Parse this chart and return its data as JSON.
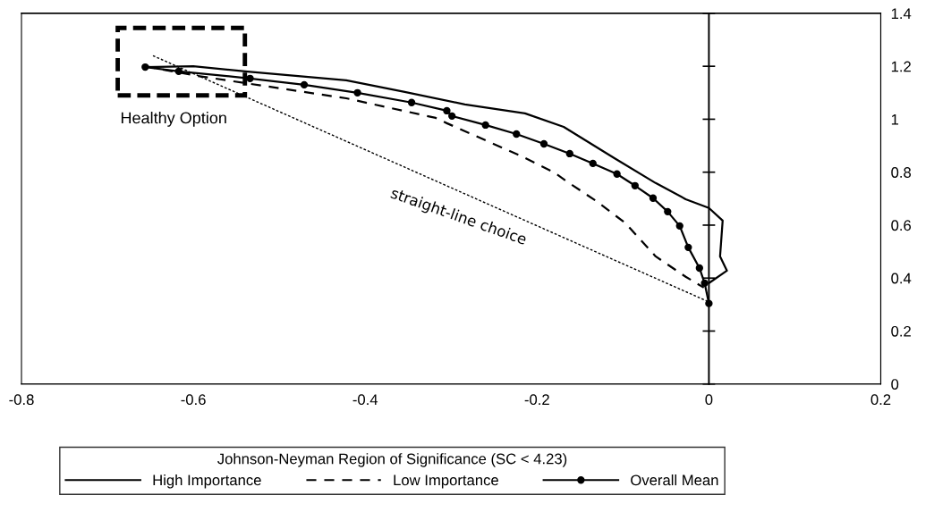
{
  "chart_data": {
    "type": "line",
    "xlim": [
      -0.8,
      0.2
    ],
    "xticks": [
      -0.8,
      -0.6,
      -0.4,
      -0.2,
      0,
      0.2
    ],
    "ylim": [
      0,
      1.4
    ],
    "yticks": [
      0,
      0.2,
      0.4,
      0.6,
      0.8,
      1,
      1.2,
      1.4
    ],
    "legend": "bottom",
    "legend_title": "Johnson-Neyman Region of Significance (SC < 4.23)",
    "annotations": [
      "Healthy Option",
      "straight-line choice"
    ],
    "series": [
      {
        "name": "High Importance",
        "color": "#000000",
        "line_style": "solid",
        "marker": "none",
        "x": [
          -0.656,
          -0.6,
          -0.537,
          -0.422,
          -0.354,
          -0.284,
          -0.214,
          -0.169,
          -0.11,
          -0.062,
          -0.027,
          0.0,
          0.016,
          0.013,
          0.021,
          0.0
        ],
        "values": [
          1.197,
          1.2,
          1.18,
          1.147,
          1.103,
          1.056,
          1.022,
          0.971,
          0.853,
          0.759,
          0.698,
          0.665,
          0.617,
          0.482,
          0.428,
          0.381
        ]
      },
      {
        "name": "Low Importance",
        "color": "#000000",
        "line_style": "dashed",
        "marker": "none",
        "x": [
          -0.656,
          -0.596,
          -0.422,
          -0.318,
          -0.305,
          -0.218,
          -0.18,
          -0.166,
          -0.131,
          -0.097,
          -0.062,
          -0.027,
          -0.006
        ],
        "values": [
          1.2,
          1.164,
          1.079,
          1.005,
          0.985,
          0.86,
          0.799,
          0.766,
          0.691,
          0.607,
          0.482,
          0.405,
          0.364
        ]
      },
      {
        "name": "Overall Mean",
        "color": "#000000",
        "line_style": "solid",
        "marker": "circle",
        "x": [
          -0.656,
          -0.617,
          -0.534,
          -0.471,
          -0.409,
          -0.346,
          -0.305,
          -0.299,
          -0.26,
          -0.224,
          -0.192,
          -0.162,
          -0.135,
          -0.107,
          -0.086,
          -0.065,
          -0.048,
          -0.034,
          -0.024,
          -0.011,
          -0.005,
          0.0
        ],
        "values": [
          1.197,
          1.181,
          1.154,
          1.13,
          1.1,
          1.063,
          1.032,
          1.012,
          0.978,
          0.944,
          0.907,
          0.87,
          0.833,
          0.793,
          0.749,
          0.702,
          0.651,
          0.597,
          0.516,
          0.438,
          0.381,
          0.304
        ]
      },
      {
        "color": "#000000",
        "line_style": "dotted",
        "marker": "none",
        "x": [
          -0.647,
          0.0
        ],
        "values": [
          1.24,
          0.31
        ]
      }
    ]
  }
}
